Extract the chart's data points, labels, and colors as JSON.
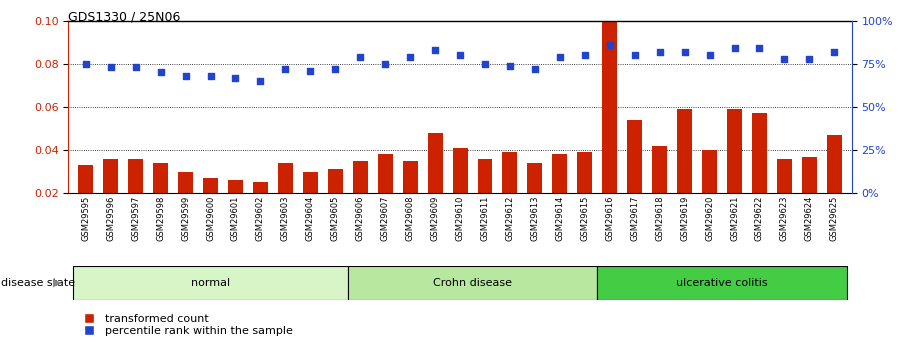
{
  "title": "GDS1330 / 25N06",
  "samples": [
    "GSM29595",
    "GSM29596",
    "GSM29597",
    "GSM29598",
    "GSM29599",
    "GSM29600",
    "GSM29601",
    "GSM29602",
    "GSM29603",
    "GSM29604",
    "GSM29605",
    "GSM29606",
    "GSM29607",
    "GSM29608",
    "GSM29609",
    "GSM29610",
    "GSM29611",
    "GSM29612",
    "GSM29613",
    "GSM29614",
    "GSM29615",
    "GSM29616",
    "GSM29617",
    "GSM29618",
    "GSM29619",
    "GSM29620",
    "GSM29621",
    "GSM29622",
    "GSM29623",
    "GSM29624",
    "GSM29625"
  ],
  "bar_values": [
    0.033,
    0.036,
    0.036,
    0.034,
    0.03,
    0.027,
    0.026,
    0.025,
    0.034,
    0.03,
    0.031,
    0.035,
    0.038,
    0.035,
    0.048,
    0.041,
    0.036,
    0.039,
    0.034,
    0.038,
    0.039,
    0.105,
    0.054,
    0.042,
    0.059,
    0.04,
    0.059,
    0.057,
    0.036,
    0.037,
    0.047
  ],
  "percentile_values": [
    75,
    73,
    73,
    70,
    68,
    68,
    67,
    65,
    72,
    71,
    72,
    79,
    75,
    79,
    83,
    80,
    75,
    74,
    72,
    79,
    80,
    86,
    80,
    82,
    82,
    80,
    84,
    84,
    78,
    78,
    82
  ],
  "groups": [
    {
      "label": "normal",
      "start": 0,
      "end": 10,
      "color": "#d8f5c8"
    },
    {
      "label": "Crohn disease",
      "start": 11,
      "end": 20,
      "color": "#b8e8a0"
    },
    {
      "label": "ulcerative colitis",
      "start": 21,
      "end": 30,
      "color": "#44cc44"
    }
  ],
  "bar_color": "#cc2200",
  "scatter_color": "#2244cc",
  "ylim_left": [
    0.02,
    0.1
  ],
  "ylim_right": [
    0,
    100
  ],
  "yticks_left": [
    0.02,
    0.04,
    0.06,
    0.08,
    0.1
  ],
  "yticks_right": [
    0,
    25,
    50,
    75,
    100
  ],
  "gridlines": [
    0.04,
    0.06,
    0.08
  ],
  "background_color": "#ffffff",
  "disease_state_label": "disease state"
}
